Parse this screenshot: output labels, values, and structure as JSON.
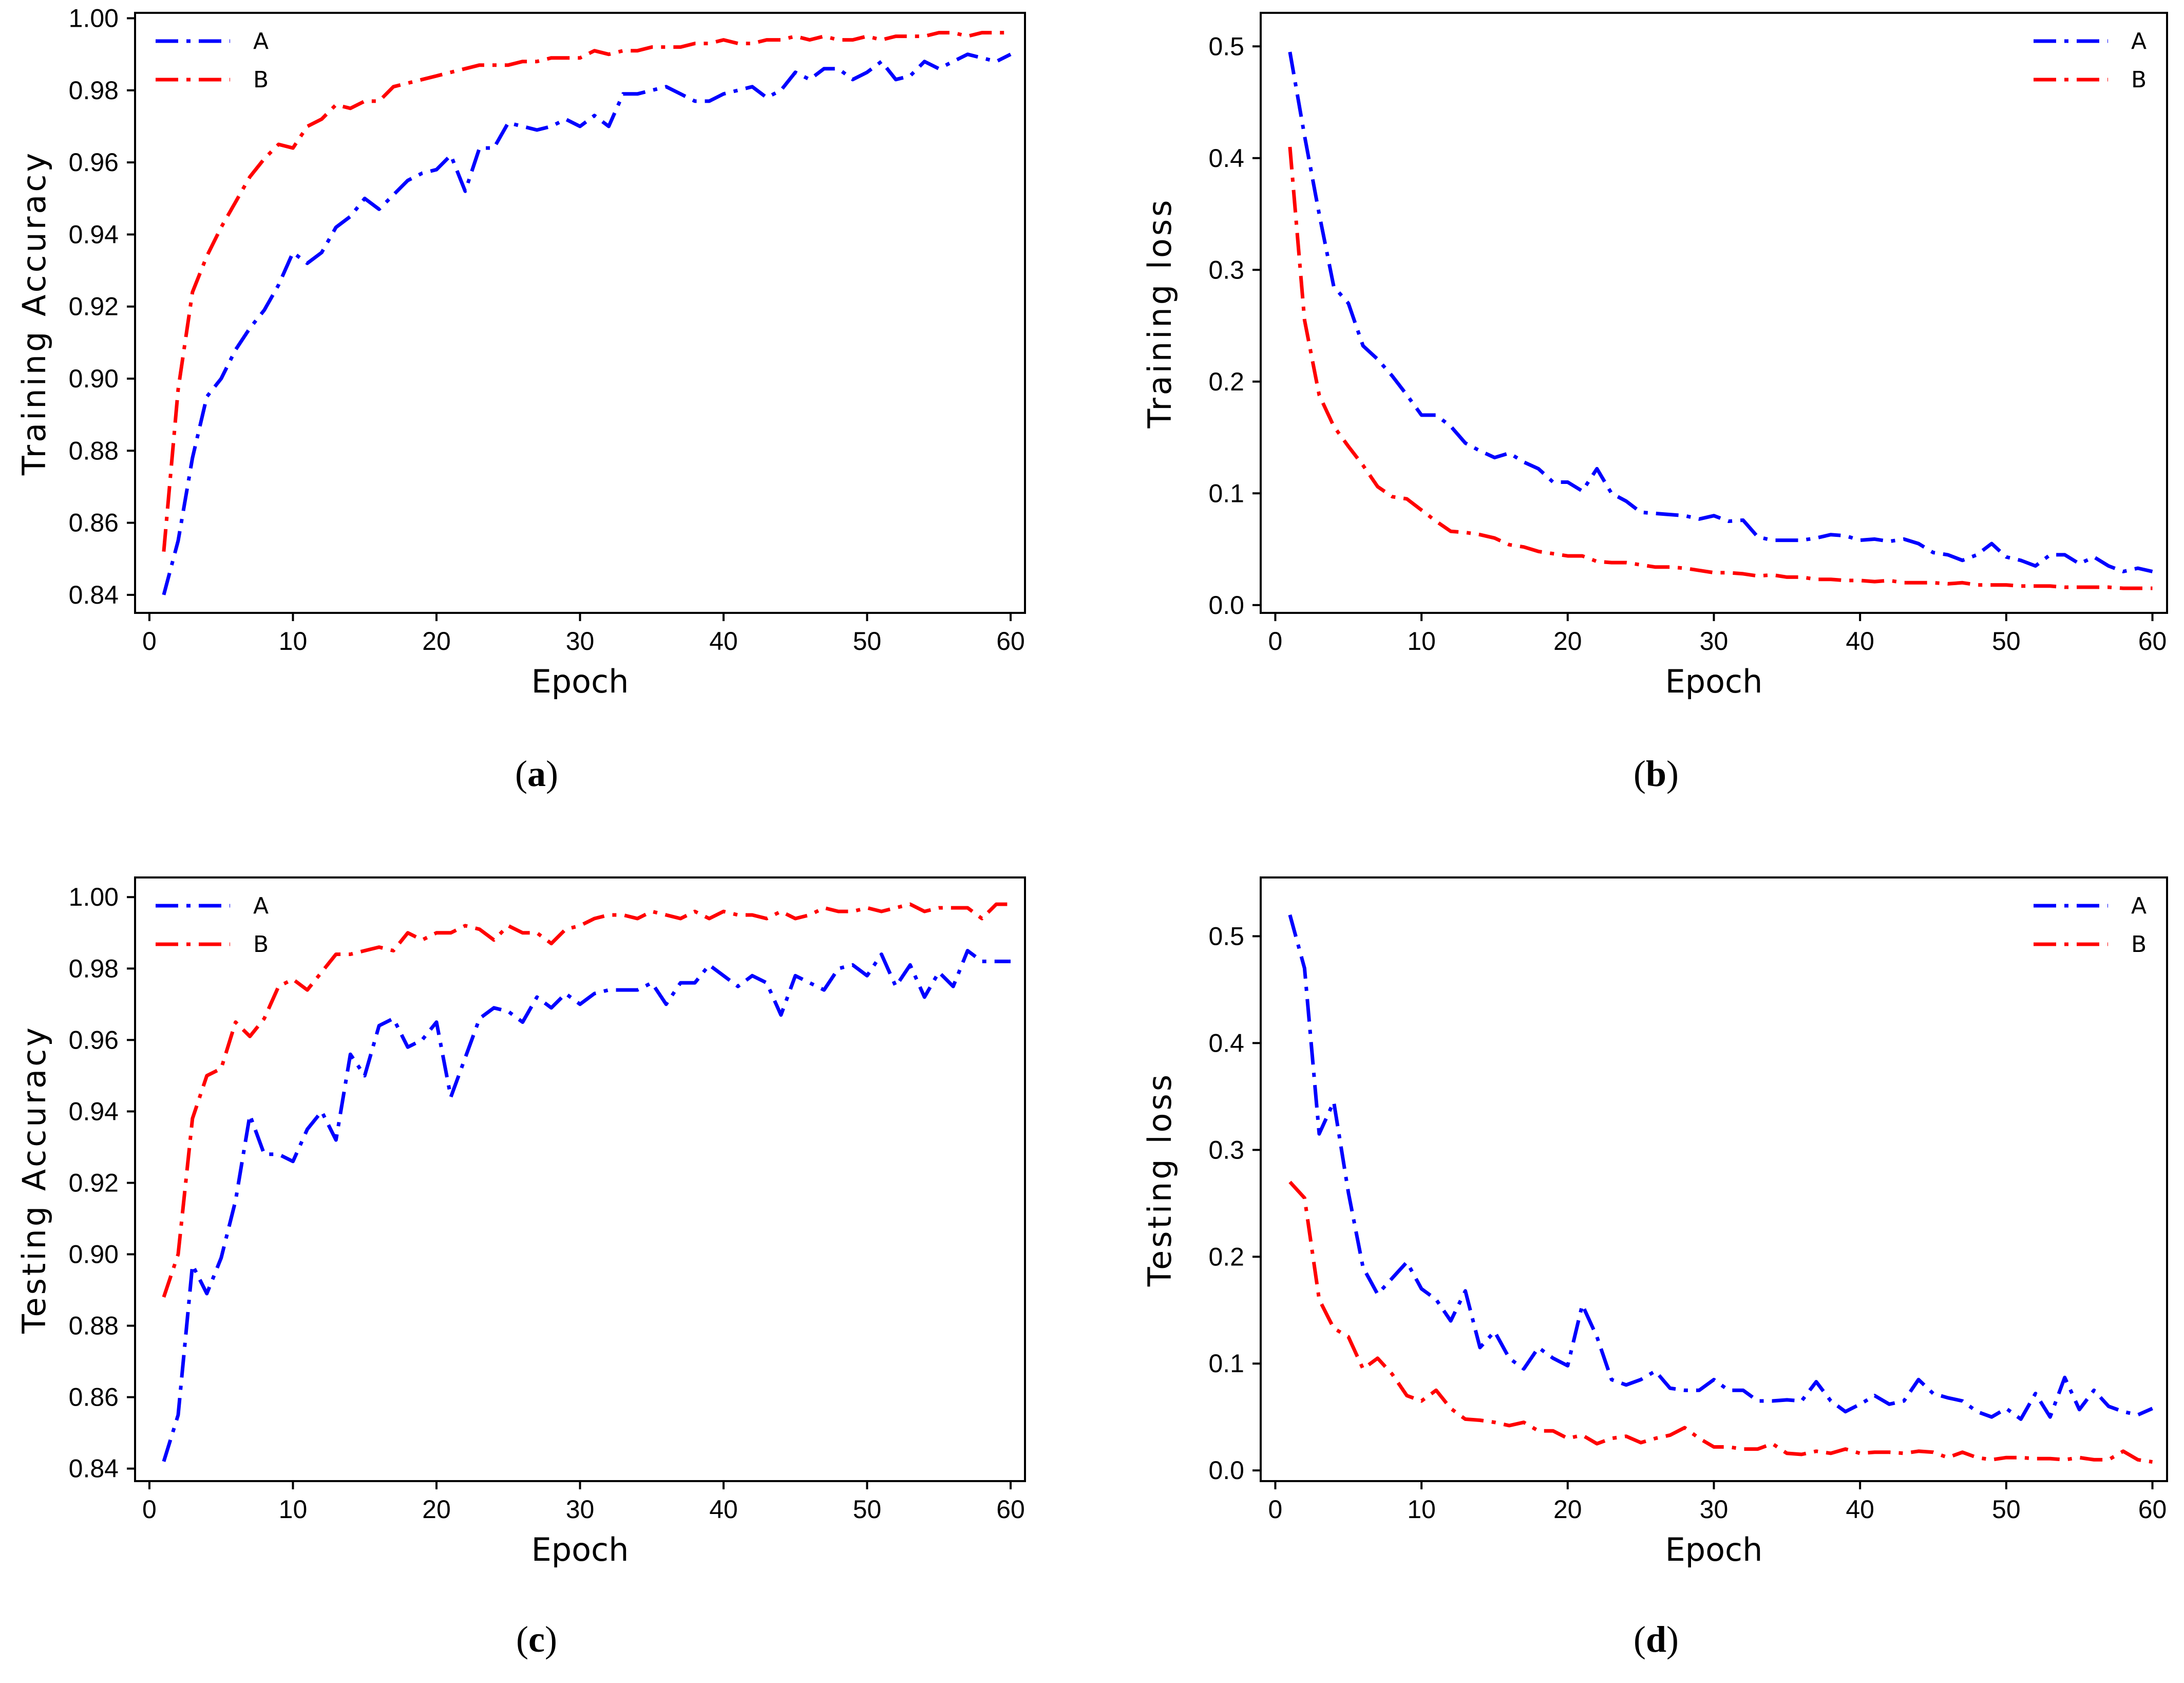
{
  "chart_data": [
    {
      "id": "a",
      "type": "line",
      "caption_letter": "a",
      "xlabel": "Epoch",
      "ylabel": "Training Accuracy",
      "xlim": [
        -1,
        61
      ],
      "ylim": [
        0.835,
        1.0015
      ],
      "xticks": [
        0,
        10,
        20,
        30,
        40,
        50,
        60
      ],
      "yticks": [
        "0.84",
        "0.86",
        "0.88",
        "0.90",
        "0.92",
        "0.94",
        "0.96",
        "0.98",
        "1.00"
      ],
      "legend_position": "top-left",
      "series": [
        {
          "name": "A",
          "color": "#0000ff",
          "values": [
            0.84,
            0.855,
            0.878,
            0.895,
            0.9,
            0.908,
            0.914,
            0.919,
            0.926,
            0.935,
            0.932,
            0.935,
            0.942,
            0.945,
            0.95,
            0.947,
            0.951,
            0.955,
            0.957,
            0.958,
            0.962,
            0.952,
            0.964,
            0.964,
            0.971,
            0.97,
            0.969,
            0.97,
            0.972,
            0.97,
            0.973,
            0.97,
            0.979,
            0.979,
            0.98,
            0.981,
            0.979,
            0.977,
            0.977,
            0.979,
            0.98,
            0.981,
            0.978,
            0.98,
            0.985,
            0.983,
            0.986,
            0.986,
            0.983,
            0.985,
            0.988,
            0.983,
            0.984,
            0.988,
            0.986,
            0.988,
            0.99,
            0.989,
            0.988,
            0.99
          ]
        },
        {
          "name": "B",
          "color": "#ff0000",
          "values": [
            0.852,
            0.897,
            0.924,
            0.934,
            0.942,
            0.949,
            0.956,
            0.961,
            0.965,
            0.964,
            0.97,
            0.972,
            0.976,
            0.975,
            0.977,
            0.977,
            0.981,
            0.982,
            0.983,
            0.984,
            0.985,
            0.986,
            0.987,
            0.987,
            0.987,
            0.988,
            0.988,
            0.989,
            0.989,
            0.989,
            0.991,
            0.99,
            0.991,
            0.991,
            0.992,
            0.992,
            0.992,
            0.993,
            0.993,
            0.994,
            0.993,
            0.993,
            0.994,
            0.994,
            0.995,
            0.994,
            0.995,
            0.994,
            0.994,
            0.995,
            0.994,
            0.995,
            0.995,
            0.995,
            0.996,
            0.996,
            0.995,
            0.996,
            0.996,
            0.996
          ]
        }
      ]
    },
    {
      "id": "b",
      "type": "line",
      "caption_letter": "b",
      "xlabel": "Epoch",
      "ylabel": "Training loss",
      "xlim": [
        -1,
        61
      ],
      "ylim": [
        -0.007,
        0.53
      ],
      "xticks": [
        0,
        10,
        20,
        30,
        40,
        50,
        60
      ],
      "yticks": [
        "0.0",
        "0.1",
        "0.2",
        "0.3",
        "0.4",
        "0.5"
      ],
      "legend_position": "top-right",
      "series": [
        {
          "name": "A",
          "color": "#0000ff",
          "values": [
            0.495,
            0.42,
            0.35,
            0.285,
            0.27,
            0.232,
            0.22,
            0.205,
            0.188,
            0.17,
            0.17,
            0.16,
            0.145,
            0.138,
            0.132,
            0.136,
            0.128,
            0.122,
            0.11,
            0.11,
            0.102,
            0.122,
            0.1,
            0.093,
            0.083,
            0.082,
            0.081,
            0.08,
            0.077,
            0.08,
            0.075,
            0.076,
            0.061,
            0.058,
            0.058,
            0.058,
            0.06,
            0.063,
            0.062,
            0.058,
            0.059,
            0.057,
            0.059,
            0.055,
            0.047,
            0.045,
            0.04,
            0.045,
            0.055,
            0.043,
            0.04,
            0.035,
            0.045,
            0.045,
            0.037,
            0.043,
            0.035,
            0.03,
            0.033,
            0.03
          ]
        },
        {
          "name": "B",
          "color": "#ff0000",
          "values": [
            0.41,
            0.255,
            0.188,
            0.16,
            0.142,
            0.125,
            0.106,
            0.097,
            0.095,
            0.085,
            0.075,
            0.066,
            0.065,
            0.063,
            0.06,
            0.054,
            0.052,
            0.048,
            0.046,
            0.044,
            0.044,
            0.039,
            0.038,
            0.038,
            0.036,
            0.034,
            0.034,
            0.033,
            0.031,
            0.029,
            0.029,
            0.028,
            0.026,
            0.027,
            0.025,
            0.025,
            0.023,
            0.023,
            0.022,
            0.022,
            0.021,
            0.022,
            0.02,
            0.02,
            0.02,
            0.019,
            0.02,
            0.018,
            0.018,
            0.018,
            0.017,
            0.017,
            0.017,
            0.016,
            0.016,
            0.016,
            0.016,
            0.015,
            0.015,
            0.015
          ]
        }
      ]
    },
    {
      "id": "c",
      "type": "line",
      "caption_letter": "c",
      "xlabel": "Epoch",
      "ylabel": "Testing Accuracy",
      "xlim": [
        -1,
        61
      ],
      "ylim": [
        0.8365,
        1.0055
      ],
      "xticks": [
        0,
        10,
        20,
        30,
        40,
        50,
        60
      ],
      "yticks": [
        "0.84",
        "0.86",
        "0.88",
        "0.90",
        "0.92",
        "0.94",
        "0.96",
        "0.98",
        "1.00"
      ],
      "legend_position": "top-left",
      "series": [
        {
          "name": "A",
          "color": "#0000ff",
          "values": [
            0.842,
            0.855,
            0.897,
            0.889,
            0.899,
            0.915,
            0.939,
            0.928,
            0.928,
            0.926,
            0.935,
            0.94,
            0.932,
            0.956,
            0.95,
            0.964,
            0.966,
            0.958,
            0.96,
            0.965,
            0.944,
            0.955,
            0.966,
            0.969,
            0.968,
            0.965,
            0.972,
            0.969,
            0.973,
            0.97,
            0.973,
            0.974,
            0.974,
            0.974,
            0.976,
            0.97,
            0.976,
            0.976,
            0.981,
            0.978,
            0.975,
            0.978,
            0.976,
            0.967,
            0.978,
            0.976,
            0.974,
            0.98,
            0.981,
            0.978,
            0.984,
            0.975,
            0.981,
            0.972,
            0.979,
            0.975,
            0.985,
            0.982,
            0.982,
            0.982
          ]
        },
        {
          "name": "B",
          "color": "#ff0000",
          "values": [
            0.888,
            0.9,
            0.938,
            0.95,
            0.952,
            0.965,
            0.961,
            0.966,
            0.975,
            0.977,
            0.974,
            0.979,
            0.984,
            0.984,
            0.985,
            0.986,
            0.985,
            0.99,
            0.988,
            0.99,
            0.99,
            0.992,
            0.991,
            0.988,
            0.992,
            0.99,
            0.99,
            0.987,
            0.991,
            0.992,
            0.994,
            0.995,
            0.995,
            0.994,
            0.996,
            0.995,
            0.994,
            0.996,
            0.994,
            0.996,
            0.995,
            0.995,
            0.994,
            0.996,
            0.994,
            0.995,
            0.997,
            0.996,
            0.996,
            0.997,
            0.996,
            0.997,
            0.998,
            0.996,
            0.997,
            0.997,
            0.997,
            0.994,
            0.998,
            0.998
          ]
        }
      ]
    },
    {
      "id": "d",
      "type": "line",
      "caption_letter": "d",
      "xlabel": "Epoch",
      "ylabel": "Testing loss",
      "xlim": [
        -1,
        61
      ],
      "ylim": [
        -0.01,
        0.555
      ],
      "xticks": [
        0,
        10,
        20,
        30,
        40,
        50,
        60
      ],
      "yticks": [
        "0.0",
        "0.1",
        "0.2",
        "0.3",
        "0.4",
        "0.5"
      ],
      "legend_position": "top-right",
      "series": [
        {
          "name": "A",
          "color": "#0000ff",
          "values": [
            0.52,
            0.47,
            0.315,
            0.345,
            0.26,
            0.19,
            0.165,
            0.18,
            0.195,
            0.17,
            0.16,
            0.14,
            0.168,
            0.115,
            0.13,
            0.105,
            0.095,
            0.115,
            0.105,
            0.098,
            0.155,
            0.125,
            0.085,
            0.08,
            0.085,
            0.093,
            0.077,
            0.075,
            0.075,
            0.085,
            0.075,
            0.075,
            0.065,
            0.065,
            0.066,
            0.065,
            0.083,
            0.065,
            0.055,
            0.062,
            0.07,
            0.062,
            0.065,
            0.085,
            0.072,
            0.068,
            0.065,
            0.055,
            0.05,
            0.058,
            0.048,
            0.072,
            0.05,
            0.087,
            0.057,
            0.075,
            0.06,
            0.055,
            0.052,
            0.058
          ]
        },
        {
          "name": "B",
          "color": "#ff0000",
          "values": [
            0.27,
            0.255,
            0.16,
            0.133,
            0.125,
            0.095,
            0.105,
            0.09,
            0.07,
            0.065,
            0.075,
            0.058,
            0.048,
            0.047,
            0.045,
            0.042,
            0.045,
            0.037,
            0.037,
            0.03,
            0.033,
            0.025,
            0.03,
            0.032,
            0.026,
            0.03,
            0.033,
            0.04,
            0.03,
            0.022,
            0.022,
            0.02,
            0.02,
            0.025,
            0.016,
            0.015,
            0.018,
            0.016,
            0.02,
            0.016,
            0.017,
            0.017,
            0.016,
            0.018,
            0.017,
            0.012,
            0.017,
            0.012,
            0.01,
            0.012,
            0.012,
            0.011,
            0.011,
            0.01,
            0.012,
            0.01,
            0.01,
            0.018,
            0.01,
            0.008
          ]
        }
      ]
    }
  ]
}
